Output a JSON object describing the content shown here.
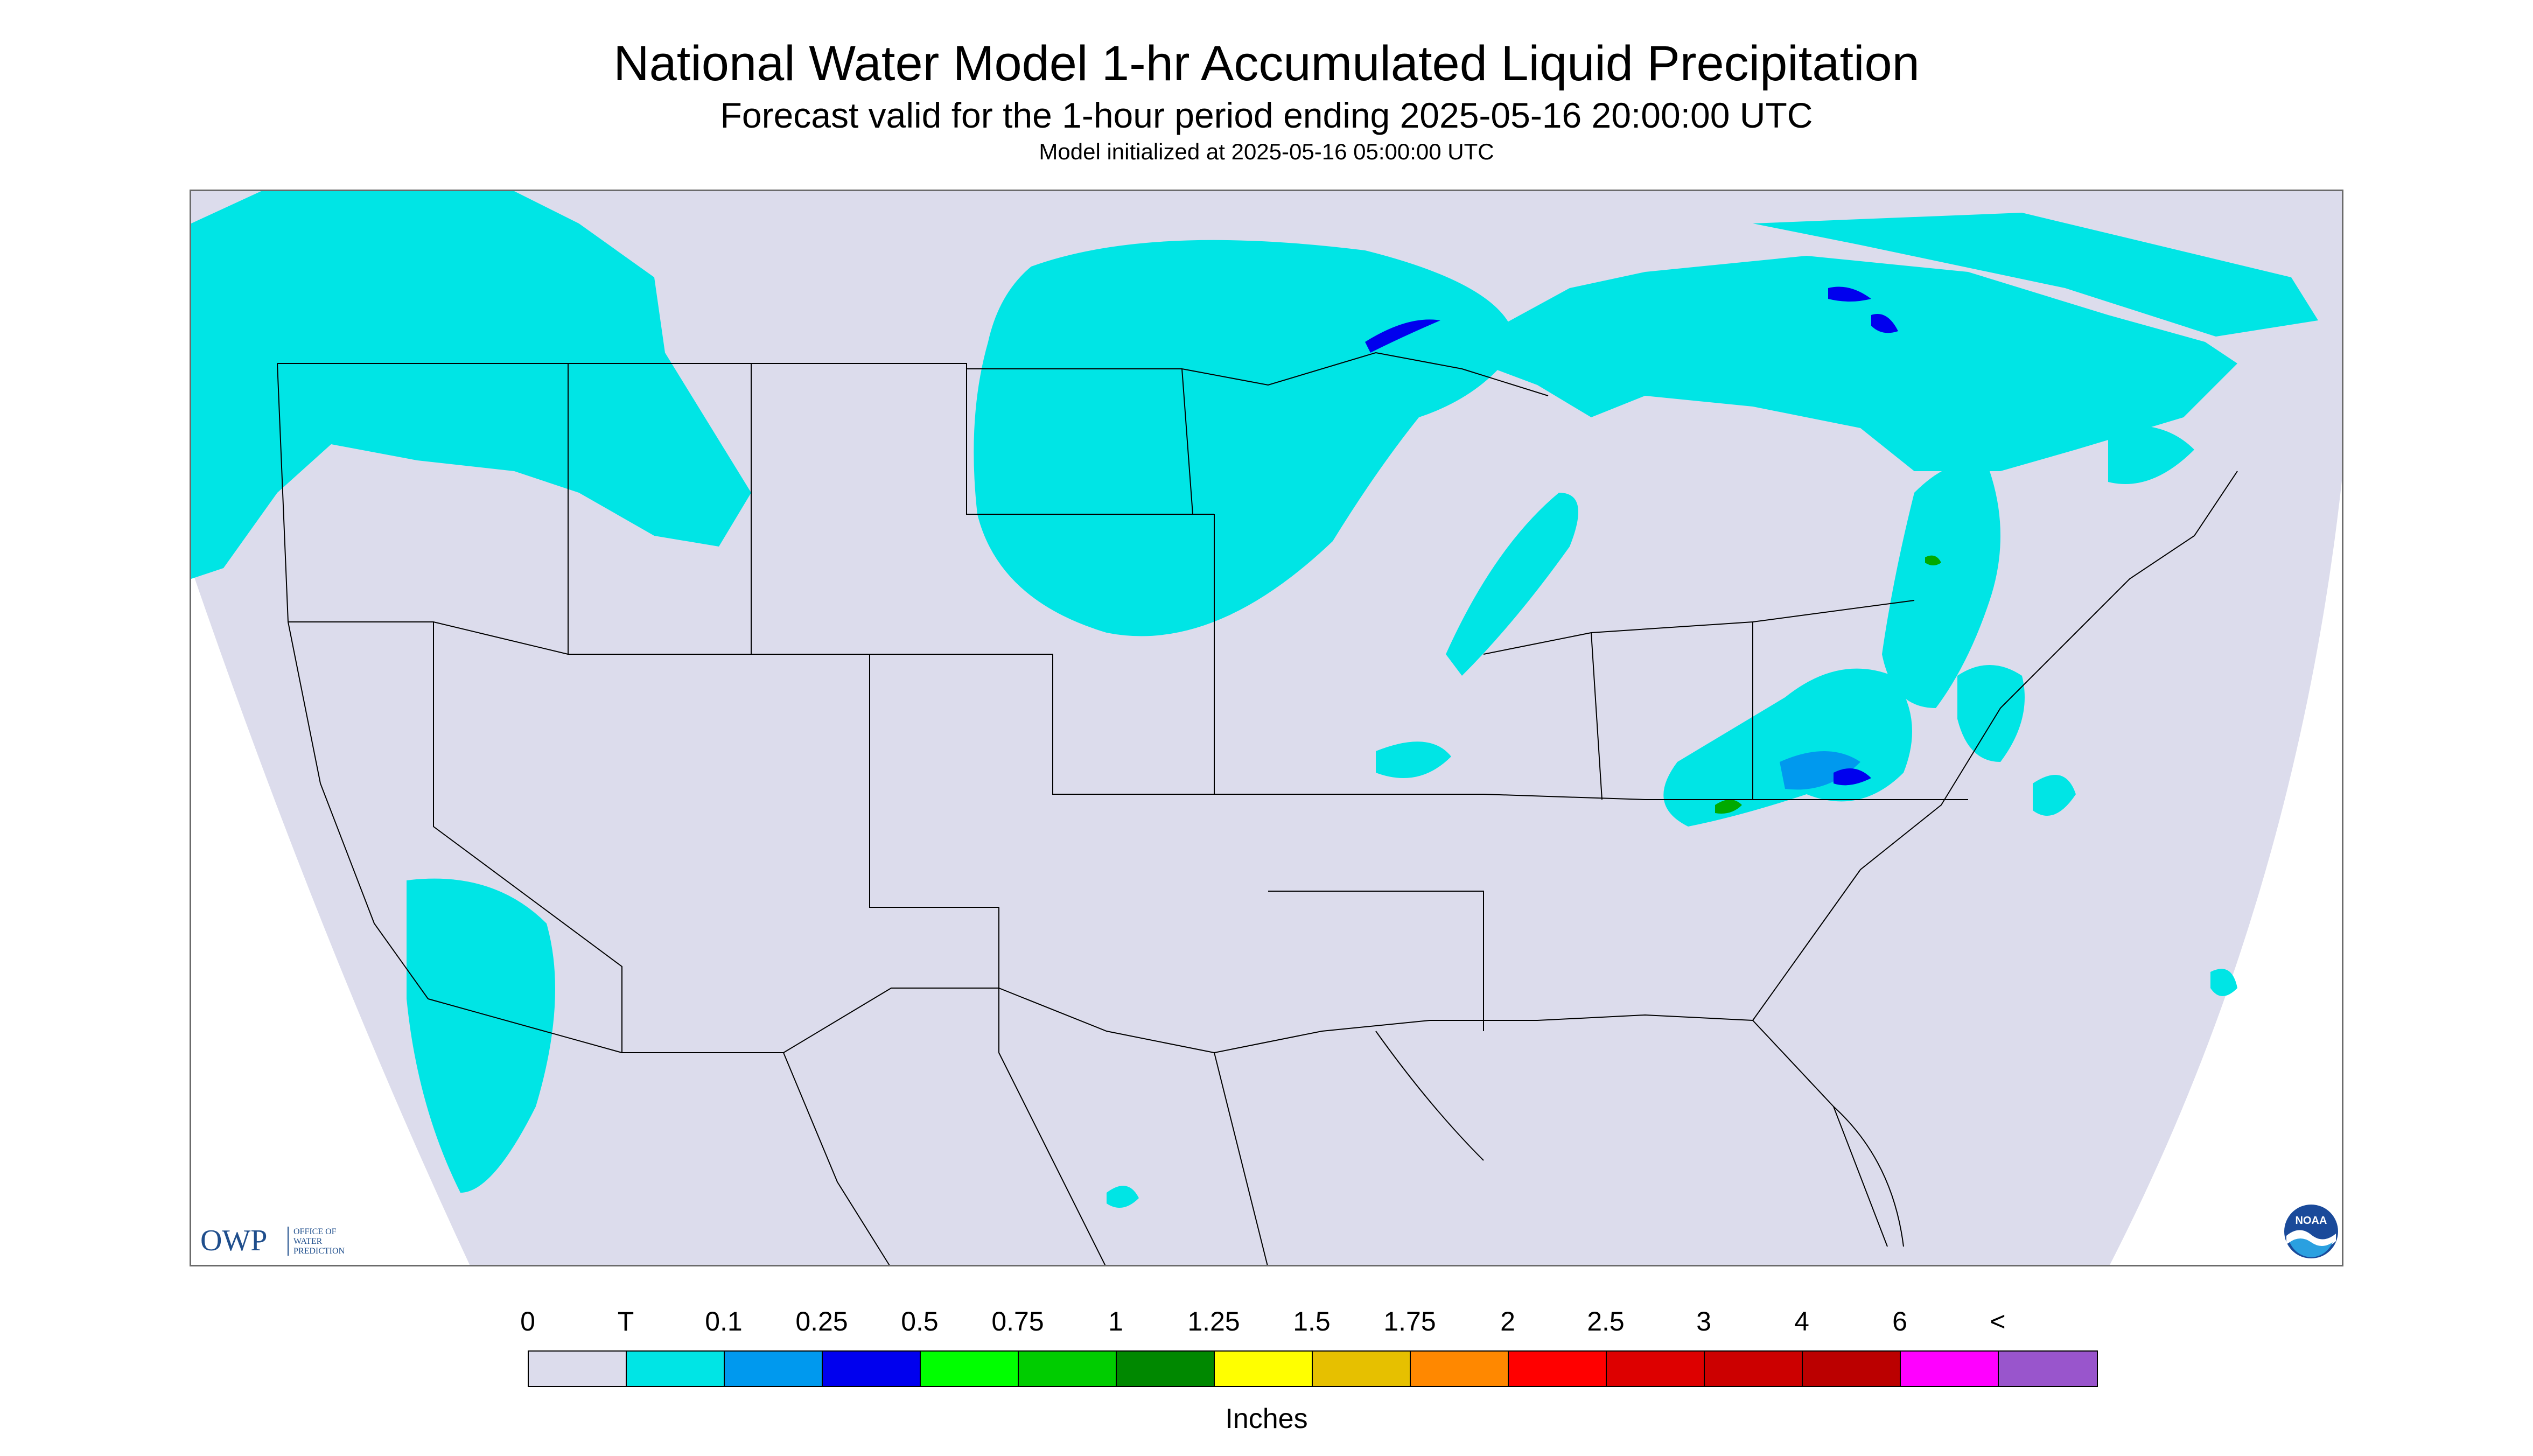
{
  "header": {
    "title": "National Water Model 1-hr Accumulated Liquid Precipitation",
    "subtitle": "Forecast valid for the 1-hour period ending 2025-05-16 20:00:00 UTC",
    "model_init": "Model initialized at 2025-05-16 05:00:00 UTC"
  },
  "map": {
    "region": "Contiguous United States",
    "colors": {
      "background": "#dcdcec",
      "trace": "#00e5e5",
      "light_blue": "#0099ee",
      "blue": "#0000ee",
      "green": "#00aa00",
      "border_line": "#000000"
    }
  },
  "logos": {
    "owp_mark": "OWP",
    "owp_text": [
      "OFFICE OF",
      "WATER",
      "PREDICTION"
    ],
    "noaa_text": "NOAA"
  },
  "legend": {
    "labels": [
      "0",
      "T",
      "0.1",
      "0.25",
      "0.5",
      "0.75",
      "1",
      "1.25",
      "1.5",
      "1.75",
      "2",
      "2.5",
      "3",
      "4",
      "6",
      "<"
    ],
    "colors": [
      "#dcdcec",
      "#00e5e5",
      "#0099ee",
      "#0000ee",
      "#00ff00",
      "#00cc00",
      "#008800",
      "#ffff00",
      "#e6c000",
      "#ff8800",
      "#ff0000",
      "#dd0000",
      "#cc0000",
      "#bb0000",
      "#ff00ff",
      "#9955cc"
    ],
    "units": "Inches"
  }
}
